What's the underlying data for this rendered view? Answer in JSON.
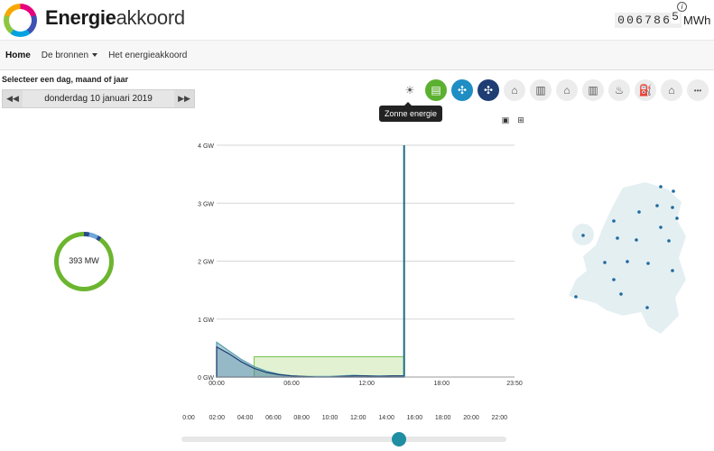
{
  "brand": {
    "bold": "Energie",
    "normal": "akkoord"
  },
  "counter": {
    "digits": [
      "0",
      "0",
      "6",
      "7",
      "8",
      "6",
      "5"
    ],
    "unit": "MWh",
    "info": "i"
  },
  "nav": {
    "items": [
      "Home",
      "De bronnen",
      "Het energieakkoord"
    ]
  },
  "selector": {
    "title": "Selecteer een dag, maand of jaar",
    "date": "donderdag 10 januari 2019",
    "prev": "◀◀",
    "next": "▶▶"
  },
  "sources": {
    "icons": [
      "sun-icon",
      "solar-panel-icon",
      "wind-onshore-icon",
      "wind-offshore-icon",
      "house-heat-icon",
      "factory-icon",
      "house-icon",
      "industry-icon",
      "fire-icon",
      "fuel-pump-icon",
      "home-icon",
      "more-icon"
    ],
    "tooltip": "Zonne energie",
    "colors": {
      "solar": "#5bb030",
      "wind": "#1f8ec4",
      "offshore": "#1e3e74"
    }
  },
  "ring": {
    "label": "393 MW",
    "colors": {
      "main": "#6cb52f",
      "accent": "#2a4a8a"
    }
  },
  "chart_data": {
    "type": "area",
    "title": "",
    "xlabel": "",
    "ylabel": "",
    "ylim": [
      0,
      4
    ],
    "yticks": [
      "0 GW",
      "1 GW",
      "2 GW",
      "3 GW",
      "4 GW"
    ],
    "xticks": [
      "00:00",
      "06:00",
      "12:00",
      "18:00",
      "23:50"
    ],
    "x_hours": [
      0,
      1,
      2,
      3,
      4,
      5,
      6,
      7,
      8,
      9,
      10,
      11,
      12,
      13,
      14,
      15
    ],
    "series": [
      {
        "color": "#5a9fb0",
        "values": [
          0.6,
          0.45,
          0.3,
          0.18,
          0.1,
          0.05,
          0.02,
          0.01,
          0.01,
          0.01,
          0.02,
          0.03,
          0.02,
          0.02,
          0.02,
          0.02
        ]
      },
      {
        "color": "#1e3e74",
        "values": [
          0.52,
          0.4,
          0.26,
          0.15,
          0.08,
          0.04,
          0.02,
          0.01,
          0.0,
          0.0,
          0.01,
          0.02,
          0.02,
          0.01,
          0.02,
          0.02
        ]
      }
    ],
    "band": {
      "color": "#a8d67a",
      "level": 0.35,
      "from": 3,
      "to": 15
    },
    "cursor_hour": 15,
    "grid": true
  },
  "timeline": {
    "ticks": [
      "0:00",
      "02:00",
      "04:00",
      "06:00",
      "08:00",
      "10:00",
      "12:00",
      "14:00",
      "16:00",
      "18:00",
      "20:00",
      "22:00"
    ],
    "position": 0.66
  },
  "map": {
    "fill": "#e4eff2",
    "dot": "#1f6aa0"
  }
}
